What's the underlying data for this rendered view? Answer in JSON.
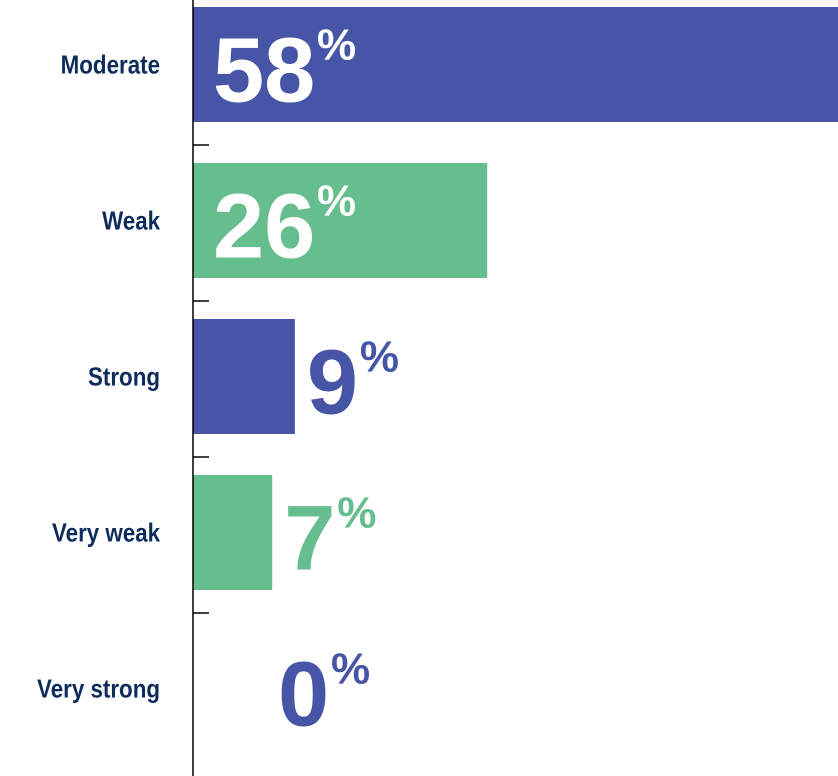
{
  "chart_data": {
    "type": "bar",
    "orientation": "horizontal",
    "categories": [
      "Moderate",
      "Weak",
      "Strong",
      "Very weak",
      "Very strong"
    ],
    "values": [
      58,
      26,
      9,
      7,
      0
    ],
    "value_labels": [
      "58",
      "26",
      "9",
      "7",
      "0"
    ],
    "value_suffix": "%",
    "colors": [
      "#4655a5",
      "#66bd8e",
      "#4655a5",
      "#66bd8e",
      "#4655a5"
    ],
    "label_color": "#0d2c5b",
    "axis_color": "#000000",
    "xlim": [
      0,
      57
    ],
    "grid": false,
    "legend": "none"
  }
}
